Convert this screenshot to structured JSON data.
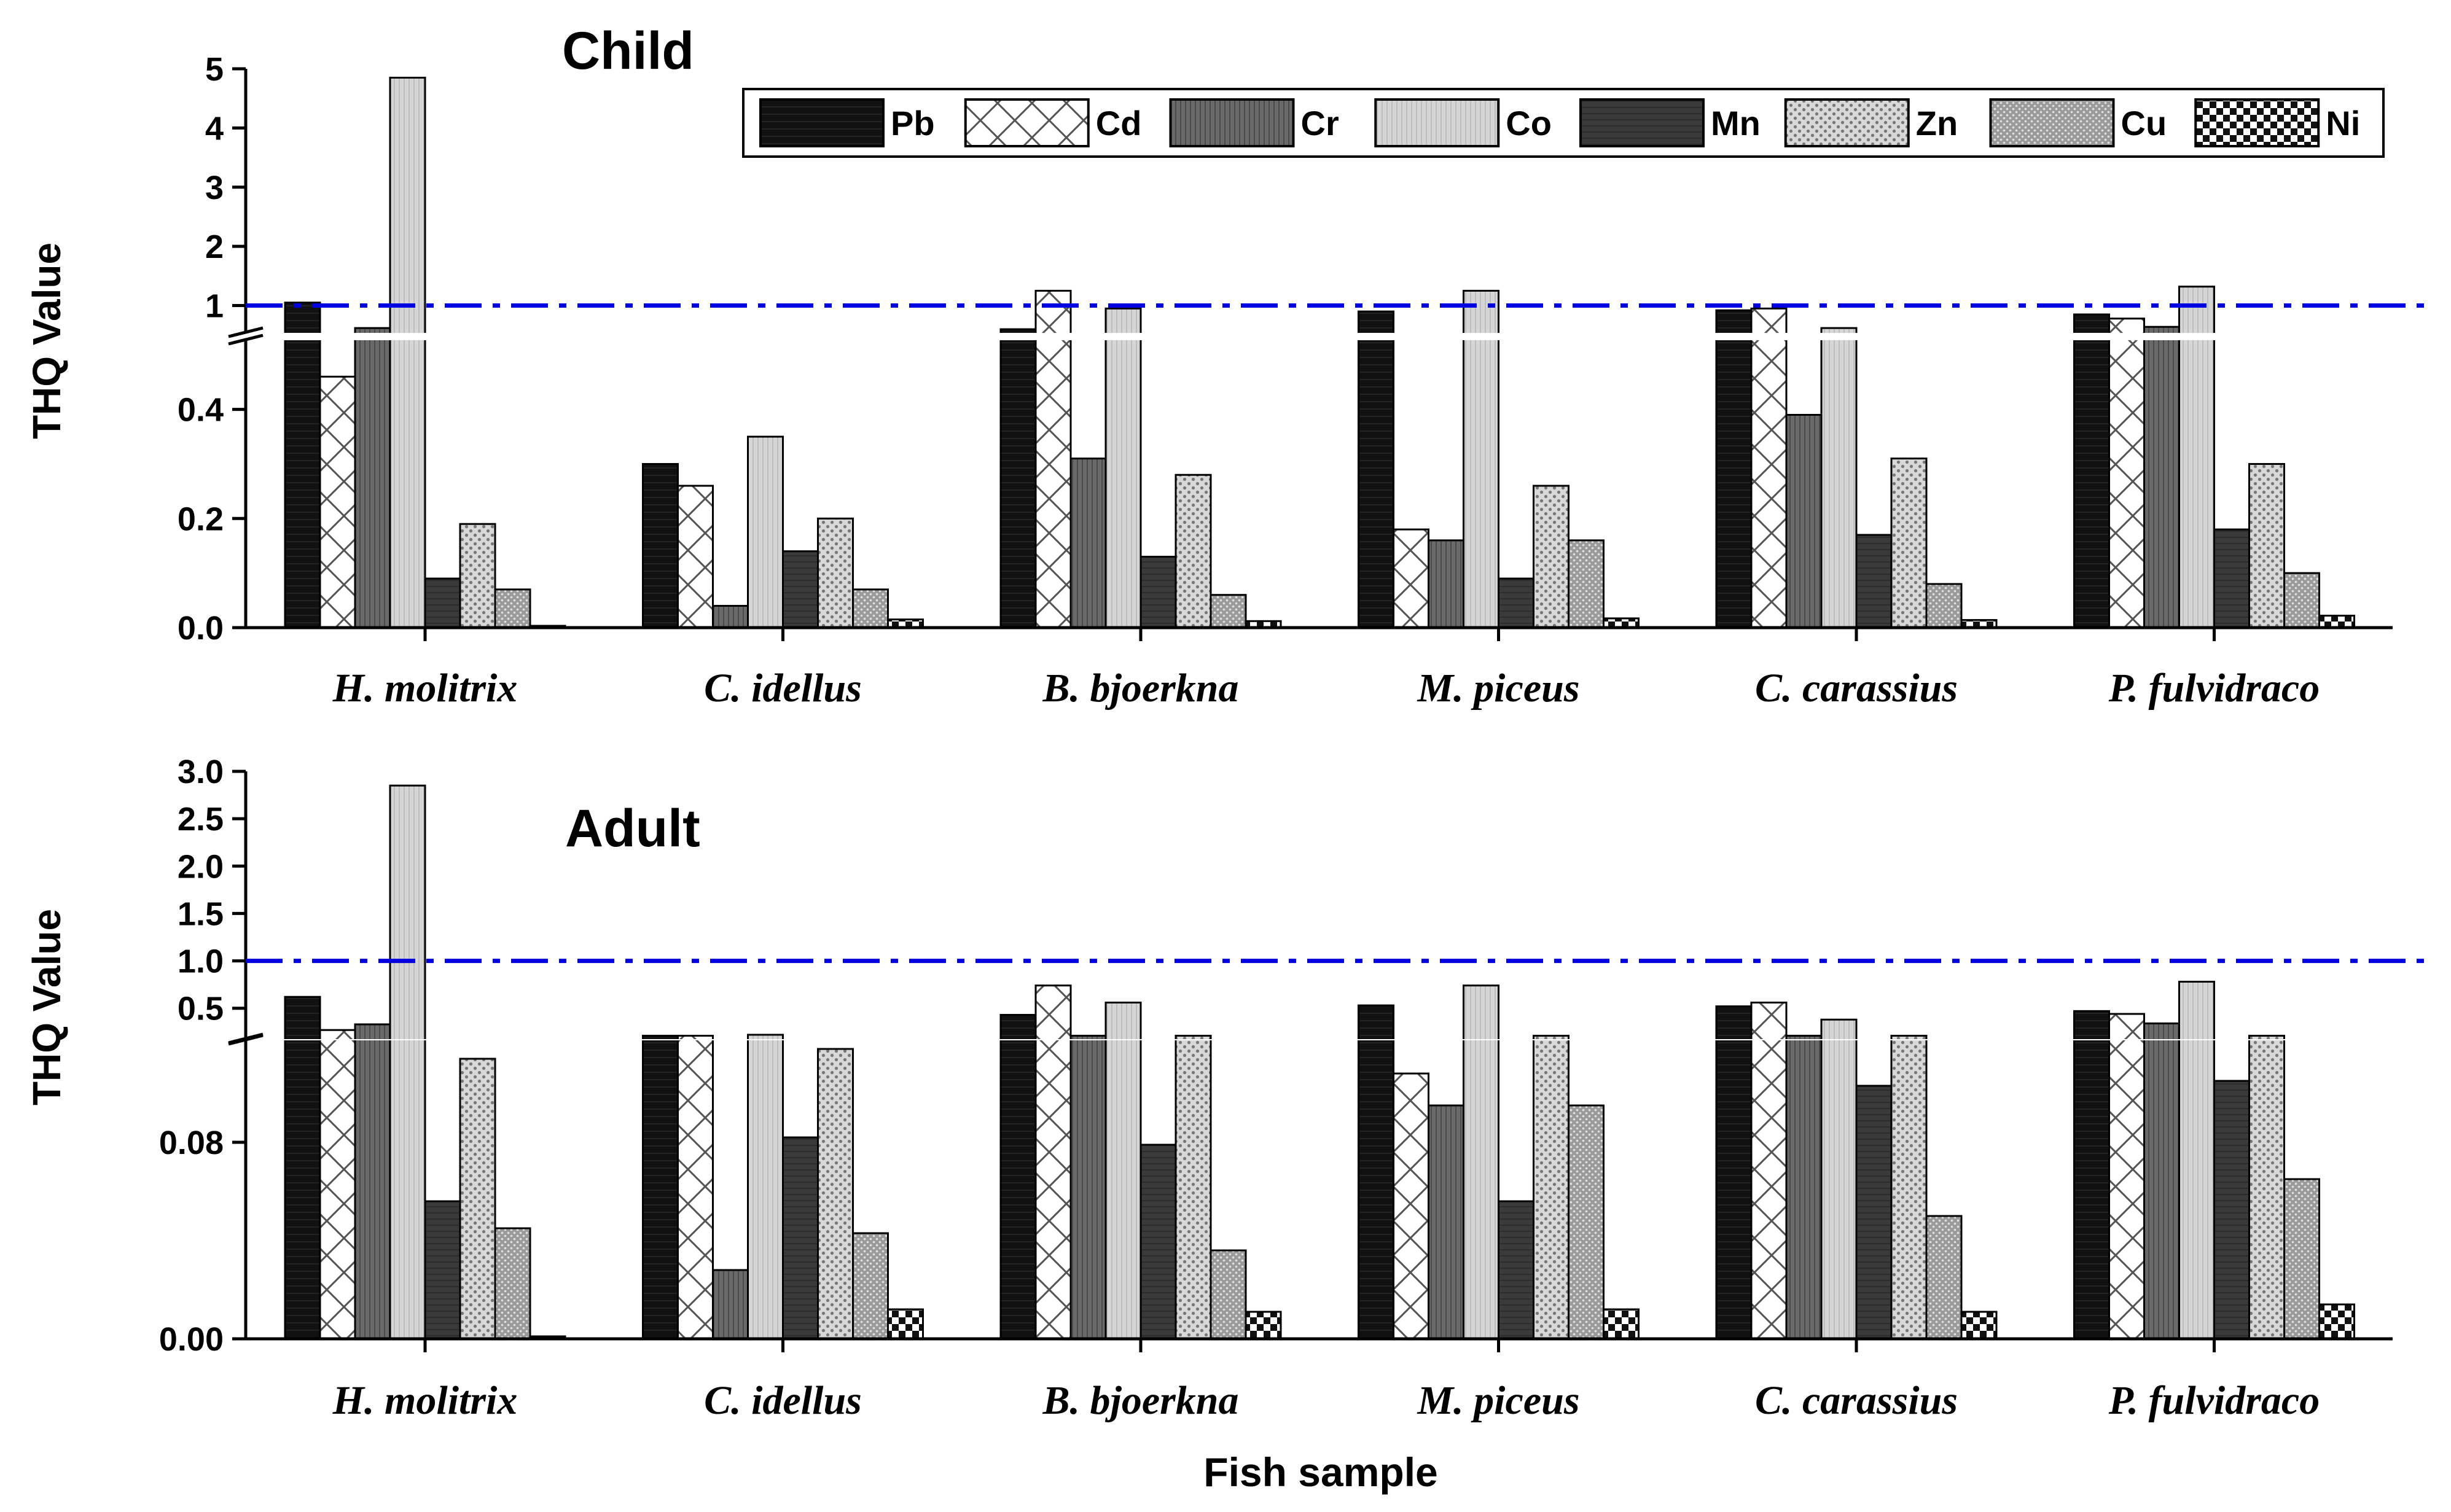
{
  "chart_data": [
    {
      "type": "bar",
      "title": "Child",
      "ylabel": "THQ Value",
      "xlabel": "",
      "categories": [
        "H. molitrix",
        "C. idellus",
        "B. bjoerkna",
        "M. piceus",
        "C. carassius",
        "P. fulvidraco"
      ],
      "reference_line": 1,
      "axis_break": [
        0.52,
        0.58
      ],
      "lower_ylim": [
        0,
        0.52
      ],
      "upper_ylim": [
        0.58,
        5
      ],
      "lower_ticks": [
        "0.0",
        "0.2",
        "0.4"
      ],
      "upper_ticks": [
        "1",
        "2",
        "3",
        "4",
        "5"
      ],
      "series": [
        {
          "name": "Pb",
          "values": [
            1.05,
            0.3,
            0.6,
            0.9,
            0.92,
            0.85
          ]
        },
        {
          "name": "Cd",
          "values": [
            0.46,
            0.26,
            1.25,
            0.18,
            0.95,
            0.78
          ]
        },
        {
          "name": "Cr",
          "values": [
            0.62,
            0.04,
            0.31,
            0.16,
            0.39,
            0.64
          ]
        },
        {
          "name": "Co",
          "values": [
            4.85,
            0.35,
            0.95,
            1.25,
            0.62,
            1.32
          ]
        },
        {
          "name": "Mn",
          "values": [
            0.09,
            0.14,
            0.13,
            0.09,
            0.17,
            0.18
          ]
        },
        {
          "name": "Zn",
          "values": [
            0.19,
            0.2,
            0.28,
            0.26,
            0.31,
            0.3
          ]
        },
        {
          "name": "Cu",
          "values": [
            0.07,
            0.07,
            0.06,
            0.16,
            0.08,
            0.1
          ]
        },
        {
          "name": "Ni",
          "values": [
            0.002,
            0.015,
            0.012,
            0.017,
            0.014,
            0.022
          ]
        }
      ]
    },
    {
      "type": "bar",
      "title": "Adult",
      "ylabel": "THQ Value",
      "xlabel": "Fish sample",
      "categories": [
        "H. molitrix",
        "C. idellus",
        "B. bjoerkna",
        "M. piceus",
        "C. carassius",
        "P. fulvidraco"
      ],
      "reference_line": 1.0,
      "axis_break": [
        0.12,
        0.2
      ],
      "lower_ylim": [
        0,
        0.12
      ],
      "upper_ylim": [
        0.2,
        3.0
      ],
      "lower_ticks": [
        "0.00",
        "0.08"
      ],
      "upper_ticks": [
        "0.5",
        "1.0",
        "1.5",
        "2.0",
        "2.5",
        "3.0"
      ],
      "series": [
        {
          "name": "Pb",
          "values": [
            0.62,
            0.21,
            0.43,
            0.53,
            0.52,
            0.47
          ]
        },
        {
          "name": "Cd",
          "values": [
            0.27,
            0.21,
            0.74,
            0.108,
            0.56,
            0.44
          ]
        },
        {
          "name": "Cr",
          "values": [
            0.33,
            0.028,
            0.21,
            0.095,
            0.21,
            0.34
          ]
        },
        {
          "name": "Co",
          "values": [
            2.85,
            0.22,
            0.56,
            0.74,
            0.38,
            0.78
          ]
        },
        {
          "name": "Mn",
          "values": [
            0.056,
            0.082,
            0.079,
            0.056,
            0.103,
            0.105
          ]
        },
        {
          "name": "Zn",
          "values": [
            0.114,
            0.118,
            0.21,
            0.21,
            0.21,
            0.21
          ]
        },
        {
          "name": "Cu",
          "values": [
            0.045,
            0.043,
            0.036,
            0.095,
            0.05,
            0.065
          ]
        },
        {
          "name": "Ni",
          "values": [
            0.001,
            0.012,
            0.011,
            0.012,
            0.011,
            0.014
          ]
        }
      ]
    }
  ],
  "legend": {
    "items": [
      "Pb",
      "Cd",
      "Cr",
      "Co",
      "Mn",
      "Zn",
      "Cu",
      "Ni"
    ]
  },
  "colors": {
    "reference_line": "#0000e0",
    "axis": "#000000",
    "background": "#ffffff"
  }
}
